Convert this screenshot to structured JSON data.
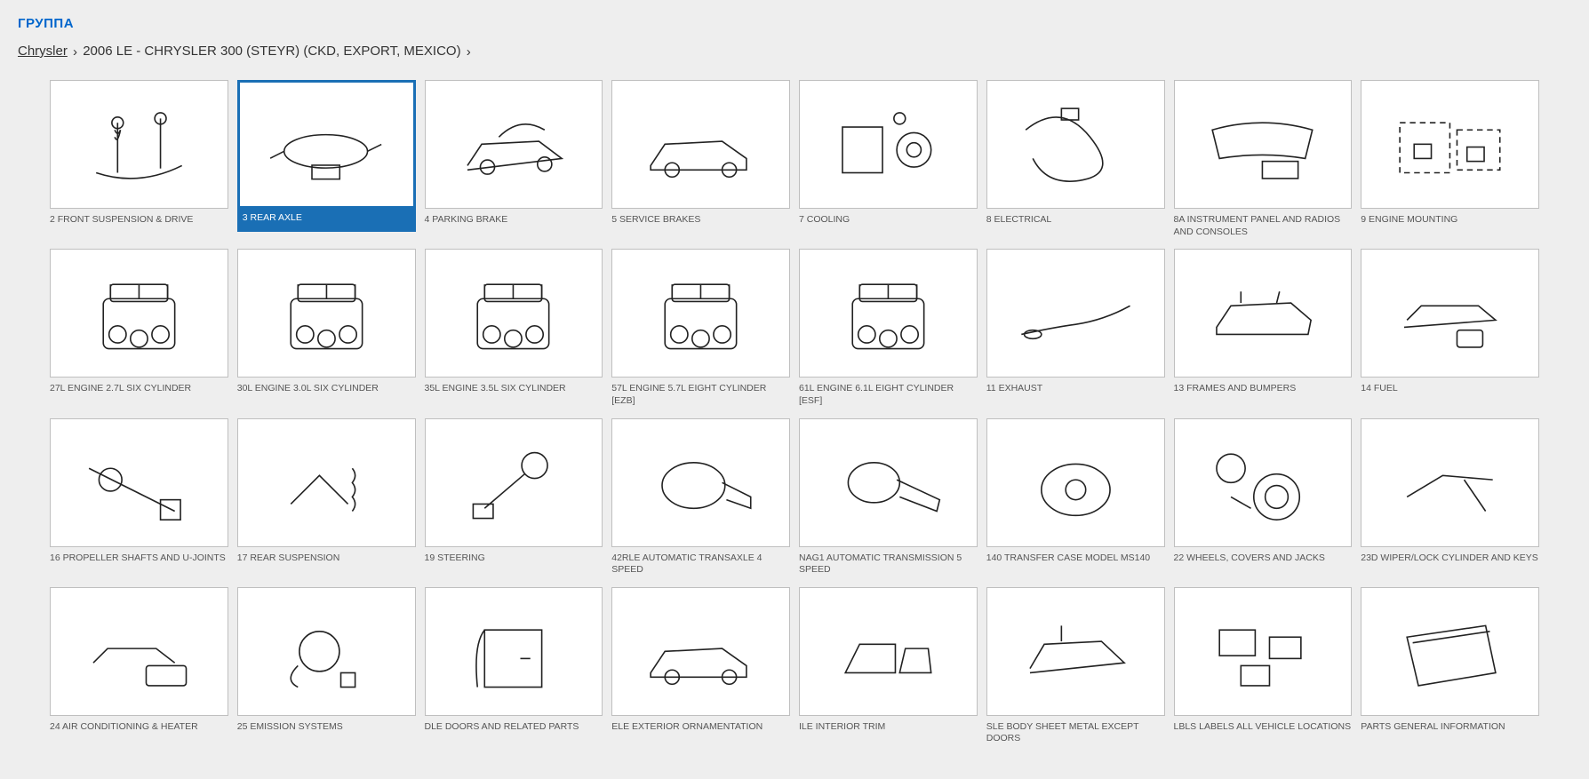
{
  "section_title": "ГРУППА",
  "breadcrumb": {
    "root": "Chrysler",
    "current": "2006 LE - CHRYSLER 300 (STEYR) (CKD, EXPORT, MEXICO)"
  },
  "colors": {
    "page_bg": "#eeeeee",
    "card_bg": "#ffffff",
    "card_border": "#bfbfbf",
    "selected_border": "#1a6fb5",
    "selected_bg": "#1a6fb5",
    "title_color": "#0066cc",
    "label_color": "#555555"
  },
  "layout": {
    "columns": 8,
    "rows": 4,
    "thumb_aspect": "180/130"
  },
  "selected_index": 1,
  "items": [
    {
      "label": "2 FRONT SUSPENSION & DRIVE",
      "icon": "suspension"
    },
    {
      "label": "3 REAR AXLE",
      "icon": "rear-axle"
    },
    {
      "label": "4 PARKING BRAKE",
      "icon": "parking-brake"
    },
    {
      "label": "5 SERVICE BRAKES",
      "icon": "car-outline"
    },
    {
      "label": "7 COOLING",
      "icon": "cooling"
    },
    {
      "label": "8 ELECTRICAL",
      "icon": "wiring"
    },
    {
      "label": "8A INSTRUMENT PANEL AND RADIOS AND CONSOLES",
      "icon": "dash"
    },
    {
      "label": "9 ENGINE MOUNTING",
      "icon": "mounting"
    },
    {
      "label": "27L ENGINE 2.7L SIX CYLINDER",
      "icon": "engine"
    },
    {
      "label": "30L ENGINE 3.0L SIX CYLINDER",
      "icon": "engine"
    },
    {
      "label": "35L ENGINE 3.5L SIX CYLINDER",
      "icon": "engine"
    },
    {
      "label": "57L ENGINE 5.7L EIGHT CYLINDER [EZB]",
      "icon": "engine"
    },
    {
      "label": "61L ENGINE 6.1L EIGHT CYLINDER [ESF]",
      "icon": "engine"
    },
    {
      "label": "11 EXHAUST",
      "icon": "exhaust"
    },
    {
      "label": "13 FRAMES AND BUMPERS",
      "icon": "frame"
    },
    {
      "label": "14 FUEL",
      "icon": "fuel"
    },
    {
      "label": "16 PROPELLER SHAFTS AND U-JOINTS",
      "icon": "propshaft"
    },
    {
      "label": "17 REAR SUSPENSION",
      "icon": "rear-susp"
    },
    {
      "label": "19 STEERING",
      "icon": "steering"
    },
    {
      "label": "42RLE AUTOMATIC TRANSAXLE 4 SPEED",
      "icon": "transaxle"
    },
    {
      "label": "NAG1 AUTOMATIC TRANSMISSION 5 SPEED",
      "icon": "transmission"
    },
    {
      "label": "140 TRANSFER CASE MODEL MS140",
      "icon": "transfer-case"
    },
    {
      "label": "22 WHEELS, COVERS AND JACKS",
      "icon": "wheels"
    },
    {
      "label": "23D WIPER/LOCK CYLINDER AND KEYS",
      "icon": "wiper"
    },
    {
      "label": "24 AIR CONDITIONING & HEATER",
      "icon": "hvac"
    },
    {
      "label": "25 EMISSION SYSTEMS",
      "icon": "emission"
    },
    {
      "label": "DLE DOORS AND RELATED PARTS",
      "icon": "doors"
    },
    {
      "label": "ELE EXTERIOR ORNAMENTATION",
      "icon": "exterior"
    },
    {
      "label": "ILE INTERIOR TRIM",
      "icon": "interior"
    },
    {
      "label": "SLE BODY SHEET METAL EXCEPT DOORS",
      "icon": "body"
    },
    {
      "label": "LBLS LABELS ALL VEHICLE LOCATIONS",
      "icon": "labels"
    },
    {
      "label": "PARTS GENERAL INFORMATION",
      "icon": "manual"
    }
  ]
}
